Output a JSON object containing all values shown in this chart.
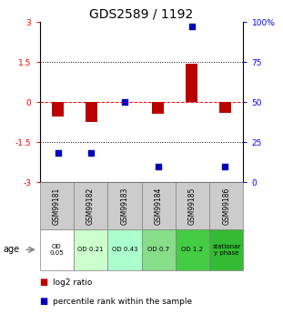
{
  "title": "GDS2589 / 1192",
  "samples": [
    "GSM99181",
    "GSM99182",
    "GSM99183",
    "GSM99184",
    "GSM99185",
    "GSM99186"
  ],
  "log2_ratio": [
    -0.55,
    -0.75,
    0.0,
    -0.45,
    1.45,
    -0.4
  ],
  "percentile_rank": [
    18,
    18,
    50,
    10,
    97,
    10
  ],
  "bar_color": "#bb0000",
  "dot_color": "#0000bb",
  "ylim_left": [
    -3,
    3
  ],
  "ylim_right": [
    0,
    100
  ],
  "yticks_left": [
    -3,
    -1.5,
    0,
    1.5,
    3
  ],
  "yticks_right": [
    0,
    25,
    50,
    75,
    100
  ],
  "age_labels": [
    "OD\n0.05",
    "OD 0.21",
    "OD 0.43",
    "OD 0.7",
    "OD 1.2",
    "stationar\ny phase"
  ],
  "age_colors": [
    "#ffffff",
    "#ccffcc",
    "#aaffcc",
    "#88dd88",
    "#44cc44",
    "#33bb33"
  ],
  "sample_bg": "#cccccc",
  "row_label": "age",
  "legend_bar": "log2 ratio",
  "legend_dot": "percentile rank within the sample",
  "bar_width": 0.35,
  "dot_size": 22,
  "title_fontsize": 10,
  "tick_fontsize": 6.5,
  "sample_fontsize": 5.5,
  "age_fontsize": 5.0,
  "legend_fontsize": 6.5
}
